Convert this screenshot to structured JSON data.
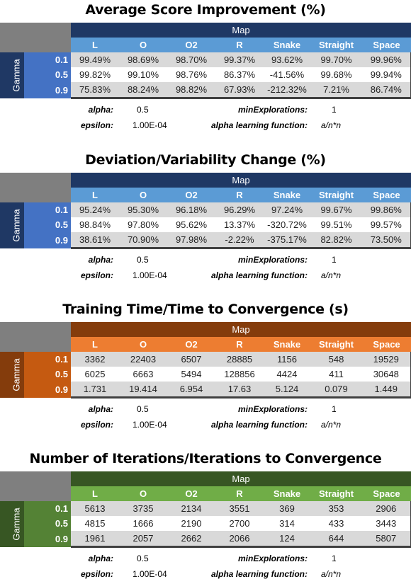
{
  "colors": {
    "blue_dark": "#1f3864",
    "blue_mid": "#4472c4",
    "blue_light": "#5b9bd5",
    "orange_dark": "#843c0c",
    "orange_mid": "#c55a11",
    "orange_light": "#ed7d31",
    "green_dark": "#375623",
    "green_mid": "#548235",
    "green_light": "#70ad47"
  },
  "sections": [
    {
      "title": "Average Score Improvement (%)",
      "map_label": "Map",
      "gamma_label": "Gamma",
      "columns": [
        "L",
        "O",
        "O2",
        "R",
        "Snake",
        "Straight",
        "Space"
      ],
      "rows": [
        {
          "gamma": "0.1",
          "values": [
            "99.49%",
            "98.69%",
            "98.70%",
            "99.37%",
            "93.62%",
            "99.70%",
            "99.96%"
          ]
        },
        {
          "gamma": "0.5",
          "values": [
            "99.82%",
            "99.10%",
            "98.76%",
            "86.37%",
            "-41.56%",
            "99.68%",
            "99.94%"
          ]
        },
        {
          "gamma": "0.9",
          "values": [
            "75.83%",
            "88.24%",
            "98.82%",
            "67.93%",
            "-212.32%",
            "7.21%",
            "86.74%"
          ]
        }
      ],
      "params": {
        "alpha_label": "alpha:",
        "alpha": "0.5",
        "minexp_label": "minExplorations:",
        "minexp": "1",
        "epsilon_label": "epsilon:",
        "epsilon": "1.00E-04",
        "alf_label": "alpha learning function:",
        "alf": "a/n*n"
      }
    },
    {
      "title": "Deviation/Variability Change (%)",
      "map_label": "Map",
      "gamma_label": "Gamma",
      "columns": [
        "L",
        "O",
        "O2",
        "R",
        "Snake",
        "Straight",
        "Space"
      ],
      "rows": [
        {
          "gamma": "0.1",
          "values": [
            "95.24%",
            "95.30%",
            "96.18%",
            "96.29%",
            "97.24%",
            "99.67%",
            "99.86%"
          ]
        },
        {
          "gamma": "0.5",
          "values": [
            "98.84%",
            "97.80%",
            "95.62%",
            "13.37%",
            "-320.72%",
            "99.51%",
            "99.57%"
          ]
        },
        {
          "gamma": "0.9",
          "values": [
            "38.61%",
            "70.90%",
            "97.98%",
            "-2.22%",
            "-375.17%",
            "82.82%",
            "73.50%"
          ]
        }
      ],
      "params": {
        "alpha_label": "alpha:",
        "alpha": "0.5",
        "minexp_label": "minExplorations:",
        "minexp": "1",
        "epsilon_label": "epsilon:",
        "epsilon": "1.00E-04",
        "alf_label": "alpha learning function:",
        "alf": "a/n*n"
      }
    },
    {
      "title": "Training Time/Time to Convergence (s)",
      "map_label": "Map",
      "gamma_label": "Gamma",
      "columns": [
        "L",
        "O",
        "O2",
        "R",
        "Snake",
        "Straight",
        "Space"
      ],
      "rows": [
        {
          "gamma": "0.1",
          "values": [
            "3362",
            "22403",
            "6507",
            "28885",
            "1156",
            "548",
            "19529"
          ]
        },
        {
          "gamma": "0.5",
          "values": [
            "6025",
            "6663",
            "5494",
            "128856",
            "4424",
            "411",
            "30648"
          ]
        },
        {
          "gamma": "0.9",
          "values": [
            "1.731",
            "19.414",
            "6.954",
            "17.63",
            "5.124",
            "0.079",
            "1.449"
          ]
        }
      ],
      "params": {
        "alpha_label": "alpha:",
        "alpha": "0.5",
        "minexp_label": "minExplorations:",
        "minexp": "1",
        "epsilon_label": "epsilon:",
        "epsilon": "1.00E-04",
        "alf_label": "alpha learning function:",
        "alf": "a/n*n"
      }
    },
    {
      "title": "Number of Iterations/Iterations to Convergence",
      "map_label": "Map",
      "gamma_label": "Gamma",
      "columns": [
        "L",
        "O",
        "O2",
        "R",
        "Snake",
        "Straight",
        "Space"
      ],
      "rows": [
        {
          "gamma": "0.1",
          "values": [
            "5613",
            "3735",
            "2134",
            "3551",
            "369",
            "353",
            "2906"
          ]
        },
        {
          "gamma": "0.5",
          "values": [
            "4815",
            "1666",
            "2190",
            "2700",
            "314",
            "433",
            "3443"
          ]
        },
        {
          "gamma": "0.9",
          "values": [
            "1961",
            "2057",
            "2662",
            "2066",
            "124",
            "644",
            "5807"
          ]
        }
      ],
      "params": {
        "alpha_label": "alpha:",
        "alpha": "0.5",
        "minexp_label": "minExplorations:",
        "minexp": "1",
        "epsilon_label": "epsilon:",
        "epsilon": "1.00E-04",
        "alf_label": "alpha learning function:",
        "alf": "a/n*n"
      }
    }
  ]
}
